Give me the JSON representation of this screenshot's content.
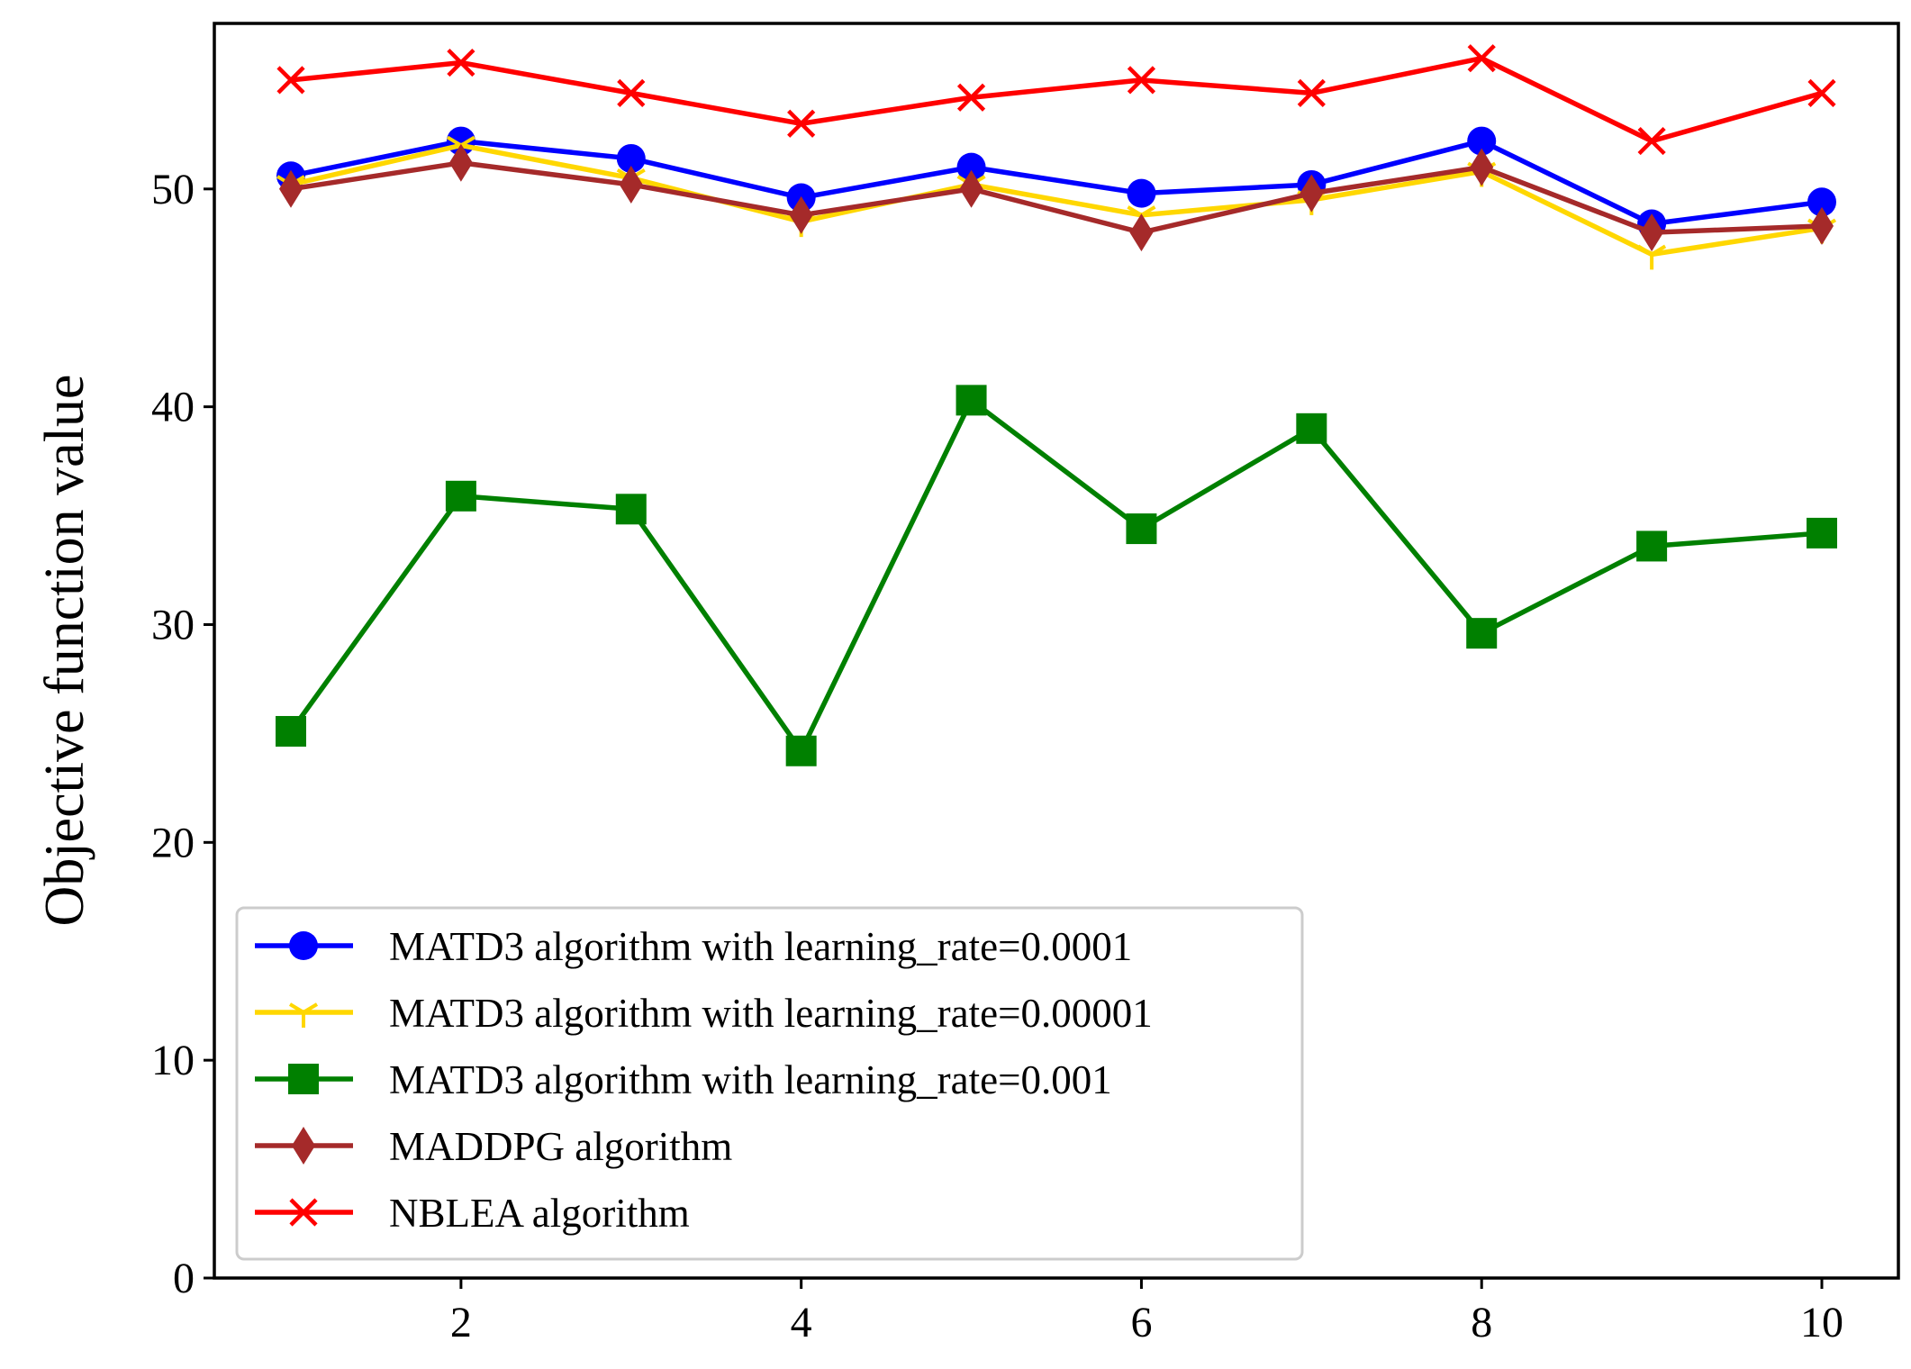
{
  "chart_data": {
    "type": "line",
    "title": "",
    "xlabel": "",
    "ylabel": "Objective function value",
    "xlim": [
      0.55,
      10.45
    ],
    "ylim": [
      0,
      57.6
    ],
    "xticks": [
      2,
      4,
      6,
      8,
      10
    ],
    "yticks": [
      0,
      10,
      20,
      30,
      40,
      50
    ],
    "grid": false,
    "legend_position": "lower-left",
    "x": [
      1,
      2,
      3,
      4,
      5,
      6,
      7,
      8,
      9,
      10
    ],
    "series": [
      {
        "name": "MATD3 algorithm with learning_rate=0.0001",
        "color": "#0000ff",
        "marker": "circle",
        "values": [
          50.6,
          52.2,
          51.4,
          49.6,
          51.0,
          49.8,
          50.2,
          52.2,
          48.4,
          49.4
        ]
      },
      {
        "name": "MATD3 algorithm with learning_rate=0.00001",
        "color": "#ffd700",
        "marker": "tri-down",
        "values": [
          50.2,
          52.0,
          50.5,
          48.5,
          50.2,
          48.8,
          49.5,
          50.8,
          47.0,
          48.2
        ]
      },
      {
        "name": "MATD3 algorithm with learning_rate=0.001",
        "color": "#008000",
        "marker": "square",
        "values": [
          25.1,
          35.9,
          35.3,
          24.2,
          40.3,
          34.4,
          39.0,
          29.6,
          33.6,
          34.2
        ]
      },
      {
        "name": "MADDPG algorithm",
        "color": "#a52a2a",
        "marker": "thin-diamond",
        "values": [
          50.0,
          51.2,
          50.2,
          48.8,
          50.0,
          48.0,
          49.8,
          51.0,
          48.0,
          48.3
        ]
      },
      {
        "name": "NBLEA algorithm",
        "color": "#ff0000",
        "marker": "x",
        "values": [
          55.0,
          55.8,
          54.4,
          53.0,
          54.2,
          55.0,
          54.4,
          56.0,
          52.2,
          54.4
        ]
      }
    ]
  }
}
